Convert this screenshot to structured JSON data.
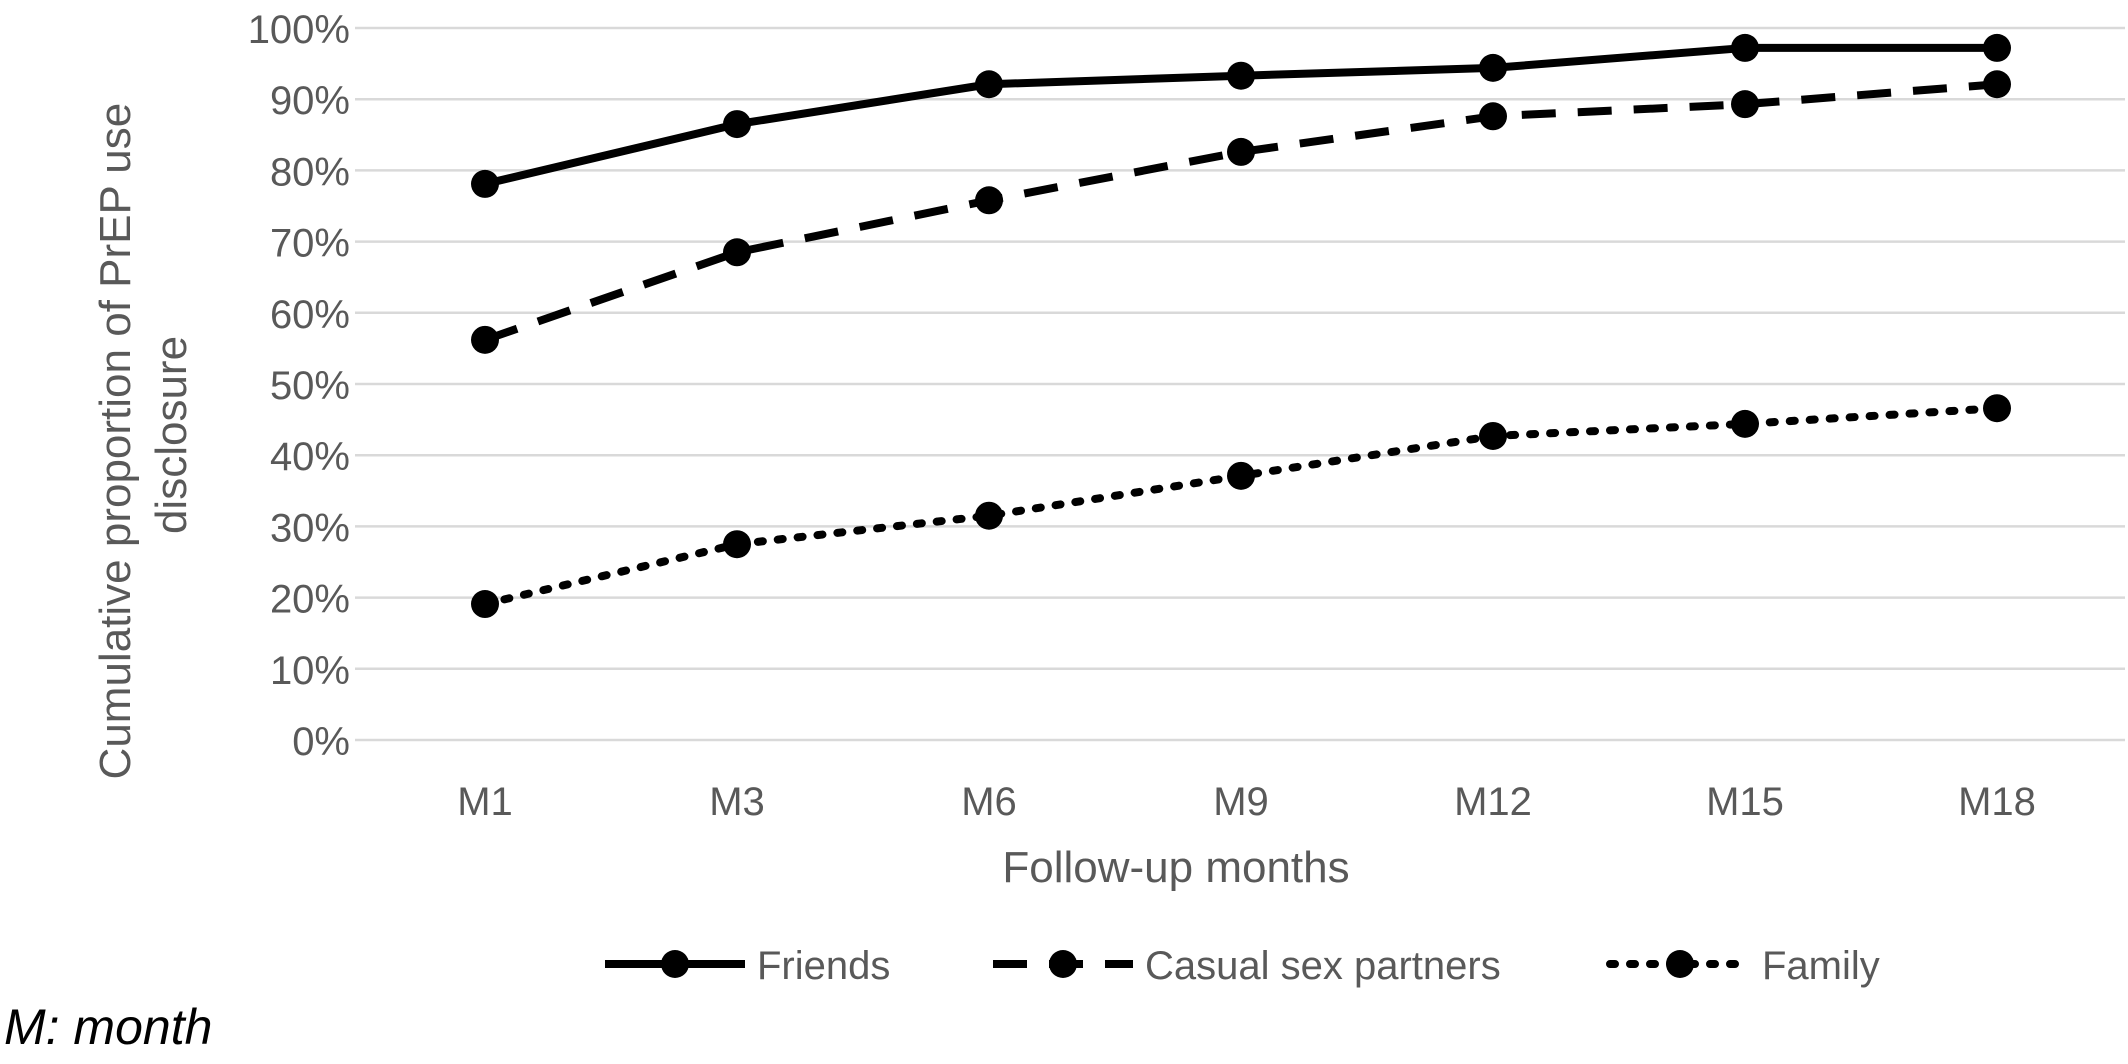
{
  "chart_data": {
    "type": "line",
    "title": "",
    "xlabel": "Follow-up months",
    "ylabel": "Cumulative proportion of PrEP use disclosure",
    "ylabel_lines": [
      "Cumulative proportion of PrEP use",
      "disclosure"
    ],
    "categories": [
      "M1",
      "M3",
      "M6",
      "M9",
      "M12",
      "M15",
      "M18"
    ],
    "ylim": [
      0,
      100
    ],
    "yticks": [
      "0%",
      "10%",
      "20%",
      "30%",
      "40%",
      "50%",
      "60%",
      "70%",
      "80%",
      "90%",
      "100%"
    ],
    "grid": true,
    "legend_position": "bottom",
    "series": [
      {
        "name": "Friends",
        "style": "solid",
        "color": "#000000",
        "values": [
          78.1,
          86.5,
          92.1,
          93.3,
          94.4,
          97.2,
          97.2
        ]
      },
      {
        "name": "Casual sex partners",
        "style": "dashed",
        "color": "#000000",
        "values": [
          56.2,
          68.5,
          75.8,
          82.6,
          87.6,
          89.3,
          92.1
        ]
      },
      {
        "name": "Family",
        "style": "dotted",
        "color": "#000000",
        "values": [
          19.1,
          27.5,
          31.5,
          37.1,
          42.7,
          44.4,
          46.6
        ]
      }
    ]
  },
  "footnote": "M: month"
}
